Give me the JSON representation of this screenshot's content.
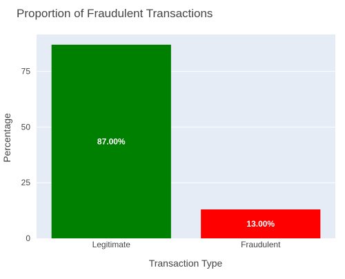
{
  "chart_data": {
    "type": "bar",
    "title": "Proportion of Fraudulent Transactions",
    "xlabel": "Transaction Type",
    "ylabel": "Percentage",
    "categories": [
      "Legitimate",
      "Fraudulent"
    ],
    "values": [
      87,
      13
    ],
    "data_labels": [
      "87.00%",
      "13.00%"
    ],
    "bar_colors": [
      "#008000",
      "#ff0000"
    ],
    "yticks": [
      0,
      25,
      50,
      75
    ],
    "ylim": [
      0,
      91.6
    ],
    "grid": true,
    "legend": "none"
  },
  "colors": {
    "plot_background": "#e5ecf6",
    "gridline": "#ffffff",
    "title_text": "#444444",
    "axis_text": "#444444",
    "data_label_text": "#ffffff"
  }
}
